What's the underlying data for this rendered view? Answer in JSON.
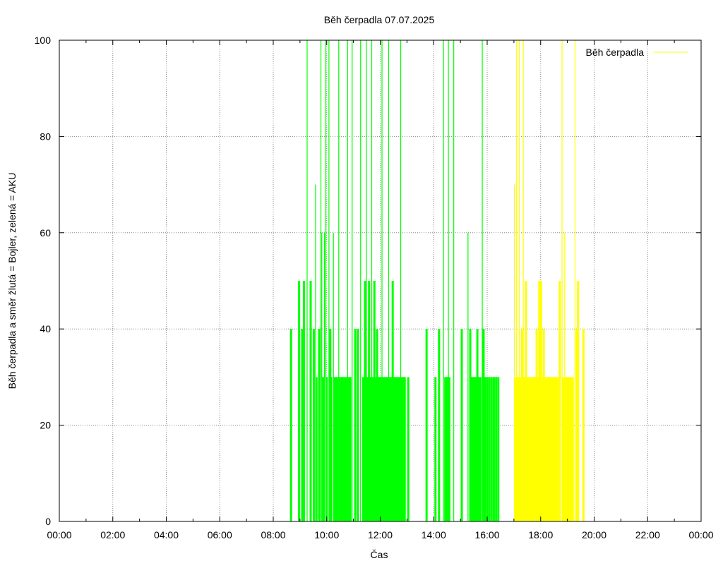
{
  "chart_data": {
    "type": "bar",
    "title": "Běh čerpadla 07.07.2025",
    "xlabel": "Čas",
    "ylabel": "Běh čerpadla a směr žlutá = Bojler, zelená = AKU",
    "xlim": [
      "00:00",
      "24:00"
    ],
    "ylim": [
      0,
      100
    ],
    "x_ticks": [
      "00:00",
      "02:00",
      "04:00",
      "06:00",
      "08:00",
      "10:00",
      "12:00",
      "14:00",
      "16:00",
      "18:00",
      "20:00",
      "22:00",
      "00:00"
    ],
    "y_ticks": [
      "0",
      "20",
      "40",
      "60",
      "80",
      "100"
    ],
    "grid": true,
    "legend": {
      "placement": "top-right",
      "entries": [
        "Běh čerpadla"
      ]
    },
    "colors": {
      "aku": "#00ff00",
      "bojler": "#ffff00",
      "grid": "#888888",
      "legend_line": "#ffff00"
    },
    "series": [
      {
        "direction": "AKU",
        "color": "#00ff00",
        "points": [
          [
            "08:40",
            40
          ],
          [
            "08:58",
            50
          ],
          [
            "09:05",
            40
          ],
          [
            "09:09",
            50
          ],
          [
            "09:16",
            100
          ],
          [
            "09:24",
            50
          ],
          [
            "09:31",
            40
          ],
          [
            "09:35",
            70
          ],
          [
            "09:37",
            30
          ],
          [
            "09:43",
            40
          ],
          [
            "09:47",
            100
          ],
          [
            "09:49",
            60
          ],
          [
            "09:52",
            30
          ],
          [
            "09:55",
            60
          ],
          [
            "09:58",
            100
          ],
          [
            "10:00",
            30
          ],
          [
            "10:05",
            100
          ],
          [
            "10:08",
            40
          ],
          [
            "10:10",
            30
          ],
          [
            "10:15",
            60
          ],
          [
            "10:18",
            30
          ],
          [
            "10:21",
            30
          ],
          [
            "10:24",
            30
          ],
          [
            "10:27",
            100
          ],
          [
            "10:29",
            30
          ],
          [
            "10:33",
            30
          ],
          [
            "10:36",
            30
          ],
          [
            "10:40",
            30
          ],
          [
            "10:44",
            30
          ],
          [
            "10:47",
            100
          ],
          [
            "10:50",
            30
          ],
          [
            "10:53",
            30
          ],
          [
            "10:57",
            100
          ],
          [
            "11:04",
            40
          ],
          [
            "11:10",
            40
          ],
          [
            "11:16",
            100
          ],
          [
            "11:22",
            30
          ],
          [
            "11:26",
            50
          ],
          [
            "11:29",
            100
          ],
          [
            "11:32",
            30
          ],
          [
            "11:35",
            50
          ],
          [
            "11:38",
            30
          ],
          [
            "11:41",
            100
          ],
          [
            "11:44",
            30
          ],
          [
            "11:47",
            50
          ],
          [
            "11:50",
            30
          ],
          [
            "11:53",
            40
          ],
          [
            "11:56",
            30
          ],
          [
            "11:58",
            30
          ],
          [
            "12:01",
            30
          ],
          [
            "12:04",
            100
          ],
          [
            "12:07",
            30
          ],
          [
            "12:10",
            30
          ],
          [
            "12:13",
            30
          ],
          [
            "12:16",
            30
          ],
          [
            "12:19",
            100
          ],
          [
            "12:22",
            30
          ],
          [
            "12:25",
            30
          ],
          [
            "12:28",
            50
          ],
          [
            "12:31",
            30
          ],
          [
            "12:34",
            30
          ],
          [
            "12:37",
            30
          ],
          [
            "12:40",
            30
          ],
          [
            "12:43",
            30
          ],
          [
            "12:46",
            100
          ],
          [
            "12:49",
            30
          ],
          [
            "12:52",
            30
          ],
          [
            "12:55",
            30
          ],
          [
            "13:03",
            30
          ],
          [
            "13:44",
            40
          ],
          [
            "14:04",
            30
          ],
          [
            "14:12",
            40
          ],
          [
            "14:22",
            100
          ],
          [
            "14:26",
            30
          ],
          [
            "14:30",
            30
          ],
          [
            "14:33",
            100
          ],
          [
            "14:35",
            30
          ],
          [
            "14:45",
            100
          ],
          [
            "15:03",
            40
          ],
          [
            "15:17",
            60
          ],
          [
            "15:22",
            40
          ],
          [
            "15:25",
            30
          ],
          [
            "15:29",
            30
          ],
          [
            "15:31",
            30
          ],
          [
            "15:35",
            30
          ],
          [
            "15:38",
            40
          ],
          [
            "15:41",
            30
          ],
          [
            "15:45",
            30
          ],
          [
            "15:49",
            100
          ],
          [
            "15:52",
            40
          ],
          [
            "15:55",
            30
          ],
          [
            "16:00",
            30
          ],
          [
            "16:05",
            30
          ],
          [
            "16:10",
            30
          ],
          [
            "16:15",
            30
          ],
          [
            "16:20",
            30
          ],
          [
            "16:25",
            30
          ]
        ]
      },
      {
        "direction": "Bojler",
        "color": "#ffff00",
        "points": [
          [
            "17:01",
            70
          ],
          [
            "17:04",
            30
          ],
          [
            "17:06",
            100
          ],
          [
            "17:09",
            30
          ],
          [
            "17:12",
            100
          ],
          [
            "17:15",
            30
          ],
          [
            "17:18",
            40
          ],
          [
            "17:21",
            100
          ],
          [
            "17:24",
            30
          ],
          [
            "17:27",
            50
          ],
          [
            "17:31",
            30
          ],
          [
            "17:35",
            30
          ],
          [
            "17:38",
            30
          ],
          [
            "17:41",
            30
          ],
          [
            "17:45",
            30
          ],
          [
            "17:48",
            30
          ],
          [
            "17:51",
            40
          ],
          [
            "17:54",
            30
          ],
          [
            "17:57",
            50
          ],
          [
            "18:01",
            50
          ],
          [
            "18:04",
            30
          ],
          [
            "18:07",
            40
          ],
          [
            "18:10",
            30
          ],
          [
            "18:14",
            30
          ],
          [
            "18:17",
            30
          ],
          [
            "18:20",
            30
          ],
          [
            "18:23",
            30
          ],
          [
            "18:27",
            30
          ],
          [
            "18:30",
            30
          ],
          [
            "18:34",
            30
          ],
          [
            "18:38",
            30
          ],
          [
            "18:43",
            50
          ],
          [
            "18:48",
            100
          ],
          [
            "18:51",
            30
          ],
          [
            "18:54",
            60
          ],
          [
            "18:57",
            30
          ],
          [
            "19:00",
            30
          ],
          [
            "19:03",
            30
          ],
          [
            "19:06",
            30
          ],
          [
            "19:09",
            30
          ],
          [
            "19:12",
            30
          ],
          [
            "19:17",
            100
          ],
          [
            "19:21",
            40
          ],
          [
            "19:24",
            50
          ],
          [
            "19:36",
            40
          ]
        ]
      }
    ]
  }
}
